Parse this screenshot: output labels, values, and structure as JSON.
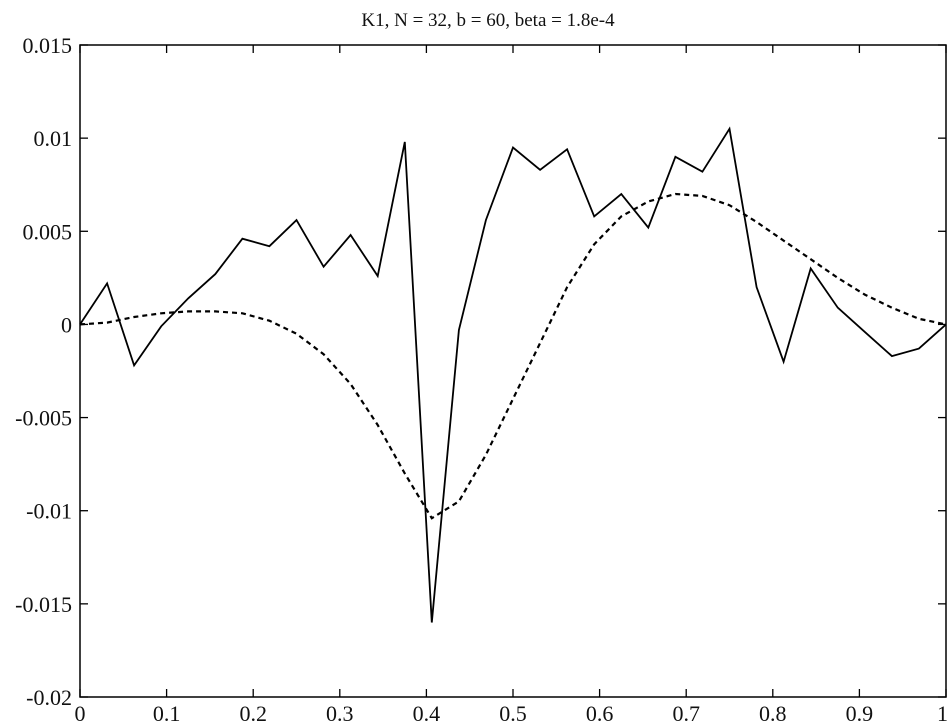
{
  "chart_data": {
    "type": "line",
    "title": "K1, N = 32, b = 60, beta = 1.8e-4",
    "xlabel": "",
    "ylabel": "",
    "xlim": [
      0,
      1
    ],
    "ylim": [
      -0.02,
      0.015
    ],
    "xticks": [
      0,
      0.1,
      0.2,
      0.3,
      0.4,
      0.5,
      0.6,
      0.7,
      0.8,
      0.9,
      1
    ],
    "xtick_labels": [
      "0",
      "0.1",
      "0.2",
      "0.3",
      "0.4",
      "0.5",
      "0.6",
      "0.7",
      "0.8",
      "0.9",
      "1"
    ],
    "yticks": [
      -0.02,
      -0.015,
      -0.01,
      -0.005,
      0,
      0.005,
      0.01,
      0.015
    ],
    "ytick_labels": [
      "-0.02",
      "-0.015",
      "-0.01",
      "-0.005",
      "0",
      "0.005",
      "0.01",
      "0.015"
    ],
    "grid": false,
    "legend": "none",
    "series": [
      {
        "style": "solid",
        "x": [
          0,
          0.03125,
          0.0625,
          0.09375,
          0.125,
          0.15625,
          0.1875,
          0.21875,
          0.25,
          0.28125,
          0.3125,
          0.34375,
          0.375,
          0.40625,
          0.4375,
          0.46875,
          0.5,
          0.53125,
          0.5625,
          0.59375,
          0.625,
          0.65625,
          0.6875,
          0.71875,
          0.75,
          0.78125,
          0.8125,
          0.84375,
          0.875,
          0.90625,
          0.9375,
          0.96875,
          1
        ],
        "y": [
          0,
          0.0022,
          -0.0022,
          -0.0001,
          0.0014,
          0.0027,
          0.0046,
          0.0042,
          0.0056,
          0.0031,
          0.0048,
          0.0026,
          0.0098,
          -0.016,
          -0.0003,
          0.0056,
          0.0095,
          0.0083,
          0.0094,
          0.0058,
          0.007,
          0.0052,
          0.009,
          0.0082,
          0.0105,
          0.002,
          -0.002,
          0.003,
          0.0009,
          -0.0004,
          -0.0017,
          -0.0013,
          0
        ]
      },
      {
        "style": "dashed",
        "x": [
          0,
          0.03125,
          0.0625,
          0.09375,
          0.125,
          0.15625,
          0.1875,
          0.21875,
          0.25,
          0.28125,
          0.3125,
          0.34375,
          0.375,
          0.40625,
          0.4375,
          0.46875,
          0.5,
          0.53125,
          0.5625,
          0.59375,
          0.625,
          0.65625,
          0.6875,
          0.71875,
          0.75,
          0.78125,
          0.8125,
          0.84375,
          0.875,
          0.90625,
          0.9375,
          0.96875,
          1
        ],
        "y": [
          0,
          0.0001,
          0.0004,
          0.0006,
          0.0007,
          0.0007,
          0.0006,
          0.0002,
          -0.0005,
          -0.0016,
          -0.0032,
          -0.0054,
          -0.008,
          -0.0104,
          -0.0095,
          -0.007,
          -0.004,
          -0.001,
          0.002,
          0.0043,
          0.0058,
          0.0066,
          0.007,
          0.0069,
          0.0064,
          0.0055,
          0.0045,
          0.0035,
          0.0025,
          0.0016,
          0.0009,
          0.0003,
          0
        ]
      }
    ]
  }
}
